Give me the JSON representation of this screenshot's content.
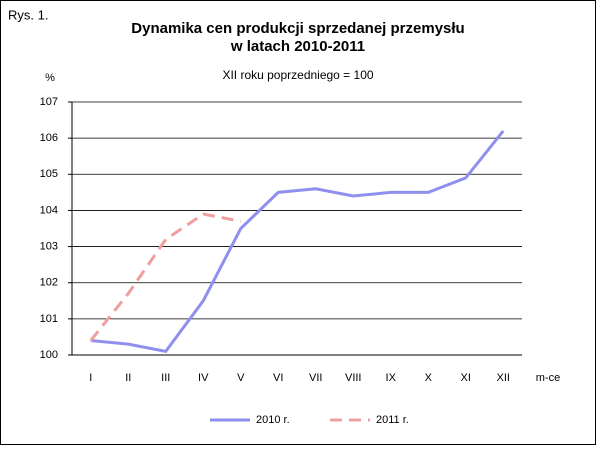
{
  "chart_data": {
    "type": "line",
    "figure_label": "Rys. 1.",
    "title": [
      "Dynamika cen produkcji sprzedanej przemysłu",
      "w latach 2010-2011"
    ],
    "subtitle": "XII roku poprzedniego = 100",
    "y_label": "%",
    "x_label": "m-ce",
    "categories": [
      "I",
      "II",
      "III",
      "IV",
      "V",
      "VI",
      "VII",
      "VIII",
      "IX",
      "X",
      "XI",
      "XII"
    ],
    "series": [
      {
        "name": "2010 r.",
        "color": "#8f8fef",
        "linestyle": "solid",
        "values": [
          100.4,
          100.3,
          100.1,
          101.5,
          103.5,
          104.5,
          104.6,
          104.4,
          104.5,
          104.5,
          104.9,
          106.2
        ]
      },
      {
        "name": "2011 r.",
        "color": "#ef9f9f",
        "linestyle": "dashed",
        "values": [
          100.4,
          101.7,
          103.2,
          103.9,
          103.7,
          null,
          null,
          null,
          null,
          null,
          null,
          null
        ]
      }
    ],
    "ylim": [
      100,
      107
    ],
    "yticks": [
      100,
      101,
      102,
      103,
      104,
      105,
      106,
      107
    ],
    "grid": true,
    "legend": "bottom"
  }
}
